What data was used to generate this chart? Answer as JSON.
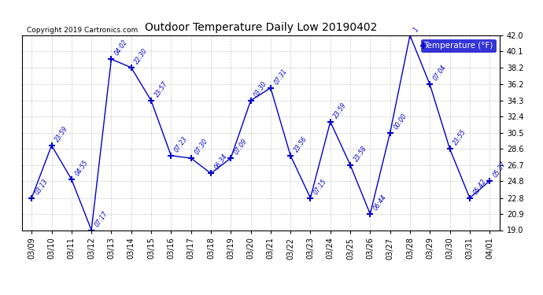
{
  "title": "Outdoor Temperature Daily Low 20190402",
  "copyright": "Copyright 2019 Cartronics.com",
  "legend_label": "Temperature (°F)",
  "dates": [
    "03/09",
    "03/10",
    "03/11",
    "03/12",
    "03/13",
    "03/14",
    "03/15",
    "03/16",
    "03/17",
    "03/18",
    "03/19",
    "03/20",
    "03/21",
    "03/22",
    "03/23",
    "03/24",
    "03/25",
    "03/26",
    "03/27",
    "03/28",
    "03/29",
    "03/30",
    "03/31",
    "04/01"
  ],
  "values": [
    22.8,
    29.0,
    25.0,
    19.0,
    39.2,
    38.2,
    34.3,
    27.8,
    27.5,
    25.7,
    27.5,
    34.3,
    35.8,
    27.8,
    22.8,
    31.8,
    26.7,
    20.9,
    30.5,
    42.0,
    36.2,
    28.6,
    22.8,
    24.8
  ],
  "time_labels": [
    "03:13",
    "23:59",
    "04:55",
    "07:17",
    "04:02",
    "22:30",
    "23:57",
    "07:23",
    "07:30",
    "06:34",
    "07:09",
    "03:30",
    "07:31",
    "23:56",
    "07:15",
    "23:59",
    "23:58",
    "06:44",
    "00:00",
    "1",
    "07:04",
    "23:55",
    "05:42",
    "05:37"
  ],
  "line_color": "#0000cc",
  "marker_color": "#0000cc",
  "bg_color": "#ffffff",
  "grid_color": "#bbbbbb",
  "ylim": [
    19.0,
    42.0
  ],
  "yticks": [
    19.0,
    20.9,
    22.8,
    24.8,
    26.7,
    28.6,
    30.5,
    32.4,
    34.3,
    36.2,
    38.2,
    40.1,
    42.0
  ],
  "figwidth": 6.9,
  "figheight": 3.75,
  "dpi": 100
}
